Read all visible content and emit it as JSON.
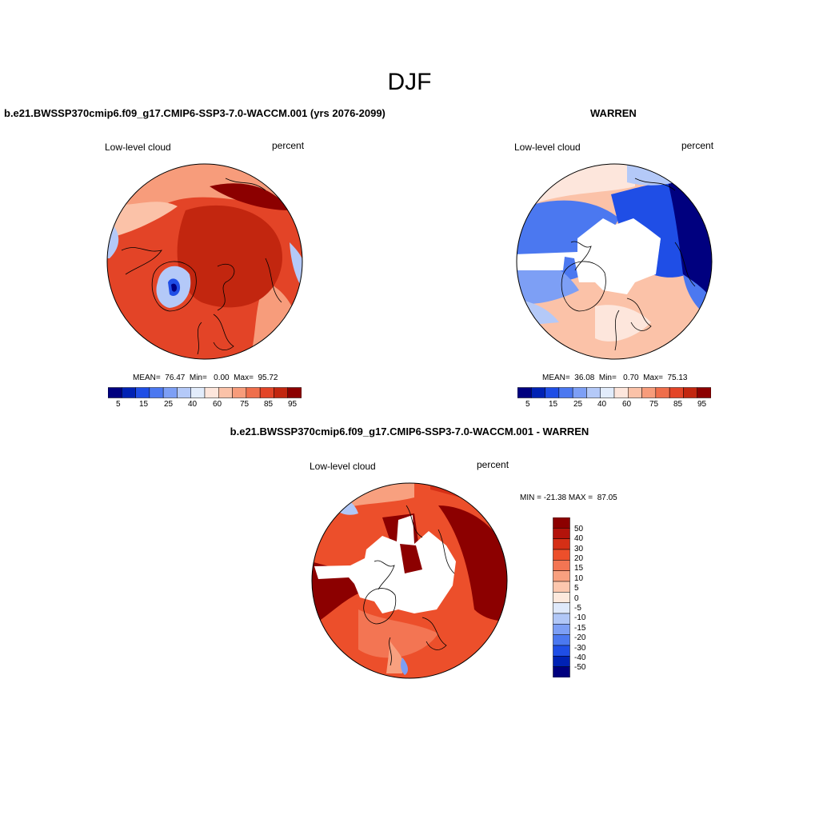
{
  "figure": {
    "season": "DJF",
    "colors": {
      "seq_scale": [
        "#00007f",
        "#0022b4",
        "#1f4ee6",
        "#4b78f0",
        "#7d9ff5",
        "#b4c9f8",
        "#e2ecfb",
        "#fde6dc",
        "#fbc2a8",
        "#f79c7b",
        "#ef6e4b",
        "#e34427",
        "#c2260f",
        "#8c0000"
      ],
      "diff_scale": [
        "#8c0000",
        "#b3130b",
        "#d52f16",
        "#ec4f2b",
        "#f37553",
        "#f8a07f",
        "#fcc7ae",
        "#fde9dd",
        "#dfe9fb",
        "#b1c7f7",
        "#7d9ff5",
        "#4b78f0",
        "#1f4ee6",
        "#0022b4",
        "#00007f"
      ]
    }
  },
  "panels": {
    "model": {
      "title": "b.e21.BWSSP370cmip6.f09_g17.CMIP6-SSP3-7.0-WACCM.001 (yrs 2076-2099)",
      "variable": "Low-level cloud",
      "units": "percent",
      "stats": "MEAN=  76.47  Min=   0.00  Max=  95.72",
      "colorbar_ticks": [
        "5",
        "15",
        "25",
        "40",
        "60",
        "75",
        "85",
        "95"
      ]
    },
    "obs": {
      "title": "WARREN",
      "variable": "Low-level cloud",
      "units": "percent",
      "stats": "MEAN=  36.08  Min=   0.70  Max=  75.13",
      "colorbar_ticks": [
        "5",
        "15",
        "25",
        "40",
        "60",
        "75",
        "85",
        "95"
      ]
    },
    "diff": {
      "title": "b.e21.BWSSP370cmip6.f09_g17.CMIP6-SSP3-7.0-WACCM.001 - WARREN",
      "variable": "Low-level cloud",
      "units": "percent",
      "stats": "MIN = -21.38 MAX =  87.05",
      "colorbar_labels": [
        "50",
        "40",
        "30",
        "20",
        "15",
        "10",
        "5",
        "0",
        "-5",
        "-10",
        "-15",
        "-20",
        "-30",
        "-40",
        "-50"
      ]
    }
  }
}
